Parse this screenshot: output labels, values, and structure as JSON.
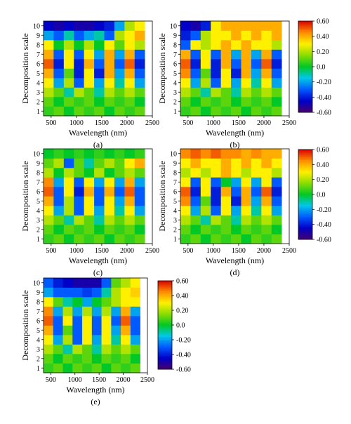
{
  "figure": {
    "panels": [
      {
        "id": "a",
        "caption": "(a)",
        "xlabel": "Wavelength (nm)",
        "ylabel": "Decomposition scale",
        "x_ticks": [
          "500",
          "1000",
          "1500",
          "2000",
          "2500"
        ],
        "y_ticks": [
          "1",
          "2",
          "3",
          "4",
          "5",
          "6",
          "7",
          "8",
          "9",
          "10"
        ]
      },
      {
        "id": "b",
        "caption": "(b)",
        "xlabel": "Wavelength (nm)",
        "ylabel": "Decomposition scale",
        "x_ticks": [
          "500",
          "1000",
          "1500",
          "2000",
          "2500"
        ],
        "y_ticks": [
          "1",
          "2",
          "3",
          "4",
          "5",
          "6",
          "7",
          "8",
          "9",
          "10"
        ]
      },
      {
        "id": "c",
        "caption": "(c)",
        "xlabel": "Wavelength (nm)",
        "ylabel": "Decomposition scale",
        "x_ticks": [
          "500",
          "1000",
          "1500",
          "2000",
          "2500"
        ],
        "y_ticks": [
          "1",
          "2",
          "3",
          "4",
          "5",
          "6",
          "7",
          "8",
          "9",
          "10"
        ]
      },
      {
        "id": "d",
        "caption": "(d)",
        "xlabel": "Wavelength (nm)",
        "ylabel": "Decomposition scale",
        "x_ticks": [
          "500",
          "1000",
          "1500",
          "2000",
          "2500"
        ],
        "y_ticks": [
          "1",
          "2",
          "3",
          "4",
          "5",
          "6",
          "7",
          "8",
          "9",
          "10"
        ]
      },
      {
        "id": "e",
        "caption": "(e)",
        "xlabel": "Wavelength (nm)",
        "ylabel": "Decomposition scale",
        "x_ticks": [
          "500",
          "1000",
          "1500",
          "2000",
          "2500"
        ],
        "y_ticks": [
          "1",
          "2",
          "3",
          "4",
          "5",
          "6",
          "7",
          "8",
          "9",
          "10"
        ]
      }
    ],
    "colorbar_ticks": [
      "0.60",
      "0.40",
      "0.20",
      "0.0",
      "-0.20",
      "-0.40",
      "-0.60"
    ]
  },
  "chart_data": [
    {
      "type": "heatmap",
      "panel": "a",
      "title": "",
      "xlabel": "Wavelength (nm)",
      "ylabel": "Decomposition scale",
      "xlim": [
        350,
        2500
      ],
      "ylim": [
        1,
        10
      ],
      "zlim": [
        -0.6,
        0.6
      ],
      "y_scales": [
        1,
        2,
        3,
        4,
        5,
        6,
        7,
        8,
        9,
        10
      ],
      "x_bins": [
        350,
        550,
        750,
        950,
        1150,
        1350,
        1550,
        1750,
        1950,
        2150,
        2350
      ],
      "z": [
        [
          0.05,
          0.1,
          0.0,
          0.1,
          0.05,
          0.1,
          0.0,
          0.1,
          0.05,
          0.1
        ],
        [
          0.1,
          0.0,
          0.1,
          0.05,
          0.1,
          0.0,
          0.1,
          0.05,
          0.1,
          0.0
        ],
        [
          0.2,
          0.1,
          -0.1,
          0.2,
          0.1,
          -0.1,
          0.2,
          0.1,
          0.2,
          0.1
        ],
        [
          0.3,
          -0.2,
          0.2,
          -0.3,
          0.3,
          -0.2,
          0.3,
          -0.1,
          0.3,
          -0.2
        ],
        [
          0.4,
          -0.3,
          0.1,
          -0.4,
          0.3,
          -0.4,
          0.4,
          -0.2,
          0.4,
          -0.3
        ],
        [
          0.5,
          -0.4,
          0.3,
          -0.4,
          0.4,
          -0.3,
          0.4,
          -0.3,
          0.5,
          -0.4
        ],
        [
          0.4,
          -0.3,
          0.3,
          -0.3,
          0.3,
          -0.2,
          0.4,
          -0.2,
          0.4,
          -0.3
        ],
        [
          0.3,
          0.0,
          0.2,
          0.0,
          0.2,
          0.0,
          0.3,
          0.1,
          0.3,
          0.2
        ],
        [
          -0.2,
          -0.3,
          -0.1,
          -0.3,
          -0.2,
          -0.1,
          -0.3,
          0.2,
          0.3,
          0.4
        ],
        [
          -0.45,
          -0.5,
          -0.45,
          -0.5,
          -0.5,
          -0.45,
          -0.4,
          -0.2,
          0.2,
          0.3
        ]
      ]
    },
    {
      "type": "heatmap",
      "panel": "b",
      "title": "",
      "xlabel": "Wavelength (nm)",
      "ylabel": "Decomposition scale",
      "xlim": [
        350,
        2500
      ],
      "ylim": [
        1,
        10
      ],
      "zlim": [
        -0.6,
        0.6
      ],
      "y_scales": [
        1,
        2,
        3,
        4,
        5,
        6,
        7,
        8,
        9,
        10
      ],
      "x_bins": [
        350,
        550,
        750,
        950,
        1150,
        1350,
        1550,
        1750,
        1950,
        2150,
        2350
      ],
      "z": [
        [
          0.05,
          0.1,
          0.0,
          0.1,
          0.05,
          0.1,
          0.0,
          0.1,
          0.05,
          0.1
        ],
        [
          0.1,
          0.0,
          0.1,
          0.05,
          0.1,
          0.0,
          0.1,
          0.05,
          0.1,
          0.0
        ],
        [
          0.2,
          0.1,
          -0.1,
          0.2,
          0.1,
          -0.1,
          0.2,
          0.1,
          0.2,
          0.1
        ],
        [
          0.3,
          -0.2,
          0.2,
          -0.3,
          0.3,
          -0.2,
          0.3,
          -0.1,
          0.3,
          -0.2
        ],
        [
          0.45,
          -0.3,
          0.1,
          -0.4,
          0.3,
          -0.4,
          0.4,
          -0.2,
          0.4,
          -0.3
        ],
        [
          0.5,
          -0.4,
          0.3,
          -0.4,
          0.4,
          -0.3,
          0.4,
          -0.3,
          0.5,
          -0.4
        ],
        [
          0.4,
          -0.3,
          0.3,
          -0.3,
          0.4,
          -0.2,
          0.4,
          -0.2,
          0.4,
          -0.3
        ],
        [
          -0.3,
          0.3,
          0.2,
          0.3,
          0.4,
          0.3,
          0.4,
          0.3,
          0.3,
          0.2
        ],
        [
          -0.4,
          -0.3,
          0.2,
          0.3,
          0.3,
          0.4,
          0.3,
          0.4,
          0.3,
          0.4
        ],
        [
          -0.45,
          -0.5,
          -0.4,
          0.3,
          0.4,
          0.4,
          0.4,
          0.4,
          0.4,
          0.4
        ]
      ]
    },
    {
      "type": "heatmap",
      "panel": "c",
      "title": "",
      "xlabel": "Wavelength (nm)",
      "ylabel": "Decomposition scale",
      "xlim": [
        350,
        2500
      ],
      "ylim": [
        1,
        10
      ],
      "zlim": [
        -0.6,
        0.6
      ],
      "y_scales": [
        1,
        2,
        3,
        4,
        5,
        6,
        7,
        8,
        9,
        10
      ],
      "x_bins": [
        350,
        550,
        750,
        950,
        1150,
        1350,
        1550,
        1750,
        1950,
        2150,
        2350
      ],
      "z": [
        [
          0.05,
          0.1,
          0.0,
          0.1,
          0.05,
          0.1,
          0.0,
          0.1,
          0.05,
          0.1
        ],
        [
          0.1,
          0.0,
          0.1,
          0.05,
          0.1,
          0.0,
          0.1,
          0.05,
          0.1,
          0.0
        ],
        [
          0.2,
          0.1,
          -0.1,
          0.2,
          0.1,
          -0.1,
          0.2,
          0.1,
          0.2,
          0.1
        ],
        [
          0.3,
          -0.2,
          0.2,
          -0.3,
          0.3,
          -0.2,
          0.3,
          -0.1,
          0.3,
          -0.2
        ],
        [
          0.4,
          -0.3,
          0.2,
          -0.3,
          0.3,
          -0.3,
          0.3,
          -0.2,
          0.4,
          -0.3
        ],
        [
          0.5,
          -0.3,
          0.3,
          -0.4,
          0.4,
          -0.3,
          0.4,
          -0.3,
          0.5,
          -0.3
        ],
        [
          0.45,
          -0.2,
          0.3,
          -0.3,
          0.3,
          -0.2,
          0.3,
          -0.2,
          0.4,
          -0.2
        ],
        [
          0.2,
          0.0,
          0.2,
          0.1,
          0.0,
          0.2,
          0.0,
          0.1,
          0.2,
          0.1
        ],
        [
          0.1,
          0.2,
          -0.3,
          0.1,
          -0.1,
          0.1,
          0.2,
          0.1,
          0.3,
          0.4
        ],
        [
          0.0,
          0.05,
          0.0,
          0.05,
          0.0,
          0.05,
          0.0,
          0.05,
          0.0,
          0.05
        ]
      ]
    },
    {
      "type": "heatmap",
      "panel": "d",
      "title": "",
      "xlabel": "Wavelength (nm)",
      "ylabel": "Decomposition scale",
      "xlim": [
        350,
        2500
      ],
      "ylim": [
        1,
        10
      ],
      "zlim": [
        -0.6,
        0.6
      ],
      "y_scales": [
        1,
        2,
        3,
        4,
        5,
        6,
        7,
        8,
        9,
        10
      ],
      "x_bins": [
        350,
        550,
        750,
        950,
        1150,
        1350,
        1550,
        1750,
        1950,
        2150,
        2350
      ],
      "z": [
        [
          0.05,
          0.1,
          0.0,
          0.1,
          0.05,
          0.1,
          0.0,
          0.1,
          0.05,
          0.1
        ],
        [
          0.1,
          0.0,
          0.1,
          0.05,
          0.1,
          0.0,
          0.1,
          0.05,
          0.1,
          0.0
        ],
        [
          0.2,
          0.1,
          -0.1,
          0.2,
          0.1,
          -0.1,
          0.2,
          0.1,
          0.2,
          0.1
        ],
        [
          0.3,
          -0.2,
          0.2,
          -0.3,
          0.3,
          -0.2,
          0.3,
          -0.1,
          0.3,
          -0.2
        ],
        [
          0.45,
          -0.3,
          0.1,
          -0.4,
          0.3,
          -0.4,
          0.4,
          -0.2,
          0.4,
          -0.3
        ],
        [
          0.5,
          -0.4,
          0.3,
          -0.4,
          0.4,
          -0.3,
          0.4,
          -0.3,
          0.5,
          -0.4
        ],
        [
          0.3,
          -0.3,
          0.3,
          -0.3,
          0.0,
          -0.2,
          0.3,
          -0.2,
          0.3,
          -0.3
        ],
        [
          0.2,
          0.3,
          0.2,
          0.3,
          0.4,
          0.3,
          0.2,
          0.3,
          0.3,
          0.2
        ],
        [
          0.3,
          0.4,
          0.3,
          0.3,
          0.4,
          0.3,
          0.4,
          0.3,
          0.4,
          0.3
        ],
        [
          0.45,
          0.5,
          0.45,
          0.5,
          0.45,
          0.45,
          0.4,
          0.45,
          0.4,
          0.4
        ]
      ]
    },
    {
      "type": "heatmap",
      "panel": "e",
      "title": "",
      "xlabel": "Wavelength (nm)",
      "ylabel": "Decomposition scale",
      "xlim": [
        350,
        2500
      ],
      "ylim": [
        1,
        10
      ],
      "zlim": [
        -0.6,
        0.6
      ],
      "y_scales": [
        1,
        2,
        3,
        4,
        5,
        6,
        7,
        8,
        9,
        10
      ],
      "x_bins": [
        350,
        550,
        750,
        950,
        1150,
        1350,
        1550,
        1750,
        1950,
        2150,
        2350
      ],
      "z": [
        [
          0.05,
          0.1,
          0.0,
          0.1,
          0.05,
          0.1,
          0.0,
          0.1,
          0.05,
          0.1
        ],
        [
          0.1,
          0.0,
          0.1,
          0.05,
          0.1,
          0.0,
          0.1,
          0.05,
          0.1,
          0.0
        ],
        [
          0.2,
          0.1,
          -0.1,
          0.2,
          0.1,
          -0.1,
          0.2,
          0.1,
          0.2,
          0.1
        ],
        [
          0.3,
          -0.2,
          0.2,
          -0.3,
          0.3,
          -0.2,
          0.3,
          -0.1,
          0.3,
          -0.2
        ],
        [
          0.4,
          -0.3,
          0.1,
          -0.3,
          0.3,
          -0.3,
          0.3,
          -0.2,
          0.4,
          -0.3
        ],
        [
          0.5,
          -0.3,
          0.3,
          -0.3,
          0.3,
          -0.3,
          0.3,
          -0.3,
          0.5,
          -0.3
        ],
        [
          0.45,
          -0.2,
          0.2,
          -0.2,
          0.2,
          -0.2,
          0.2,
          -0.2,
          0.4,
          -0.2
        ],
        [
          0.3,
          0.1,
          -0.1,
          0.0,
          -0.2,
          0.0,
          0.1,
          0.2,
          0.3,
          0.3
        ],
        [
          -0.2,
          -0.3,
          -0.3,
          -0.3,
          -0.35,
          -0.3,
          -0.1,
          0.2,
          0.3,
          0.35
        ],
        [
          -0.3,
          -0.4,
          -0.45,
          -0.5,
          -0.5,
          -0.5,
          -0.3,
          0.1,
          0.2,
          0.3
        ]
      ]
    }
  ]
}
